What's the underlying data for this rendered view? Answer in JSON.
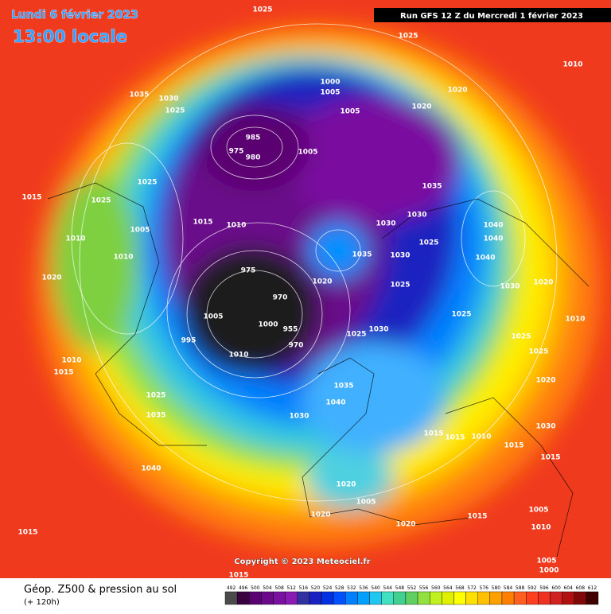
{
  "header": {
    "date": "Lundi 6 février 2023",
    "time": "13:00 locale",
    "run": "Run GFS 12 Z du Mercredi 1 février 2023"
  },
  "footer": {
    "title": "Géop. Z500 & pression au sol",
    "subtitle": "(+ 120h)",
    "copyright": "Copyright © 2023 Meteociel.fr"
  },
  "legend": {
    "values": [
      492,
      496,
      500,
      504,
      508,
      512,
      516,
      520,
      524,
      528,
      532,
      536,
      540,
      544,
      548,
      552,
      556,
      560,
      564,
      568,
      572,
      576,
      580,
      584,
      588,
      592,
      596,
      600,
      604,
      608,
      612
    ],
    "colors": [
      "#4b4b4b",
      "#3a0040",
      "#5a0070",
      "#6a0a8a",
      "#7a10a0",
      "#8a1ab4",
      "#3030a0",
      "#1a20c0",
      "#0030e0",
      "#0050ff",
      "#0080ff",
      "#00a0ff",
      "#20c8f0",
      "#40e0c0",
      "#40d090",
      "#60d060",
      "#90e040",
      "#c0f020",
      "#e0f000",
      "#ffff00",
      "#ffe000",
      "#ffc000",
      "#ffa000",
      "#ff8000",
      "#ff6020",
      "#ff4020",
      "#f03020",
      "#d02020",
      "#b01010",
      "#800808",
      "#400000"
    ]
  },
  "isobar_labels": [
    1025,
    1025,
    1010,
    1000,
    1005,
    1005,
    1020,
    1020,
    1035,
    1030,
    1025,
    985,
    975,
    980,
    1005,
    1025,
    1025,
    1015,
    1005,
    1015,
    1010,
    1010,
    1010,
    1020,
    1035,
    1030,
    1030,
    1025,
    1035,
    1030,
    1040,
    1040,
    1040,
    1020,
    975,
    970,
    1025,
    1030,
    1020,
    1005,
    1000,
    955,
    970,
    995,
    1010,
    1025,
    1030,
    1025,
    1010,
    1025,
    1025,
    1035,
    1040,
    1010,
    1015,
    1025,
    1035,
    1030,
    1015,
    1015,
    1010,
    1020,
    1030,
    1015,
    1015,
    1040,
    1020,
    1005,
    1020,
    1020,
    1015,
    1005,
    1010,
    1015,
    1005,
    1000,
    1015
  ]
}
